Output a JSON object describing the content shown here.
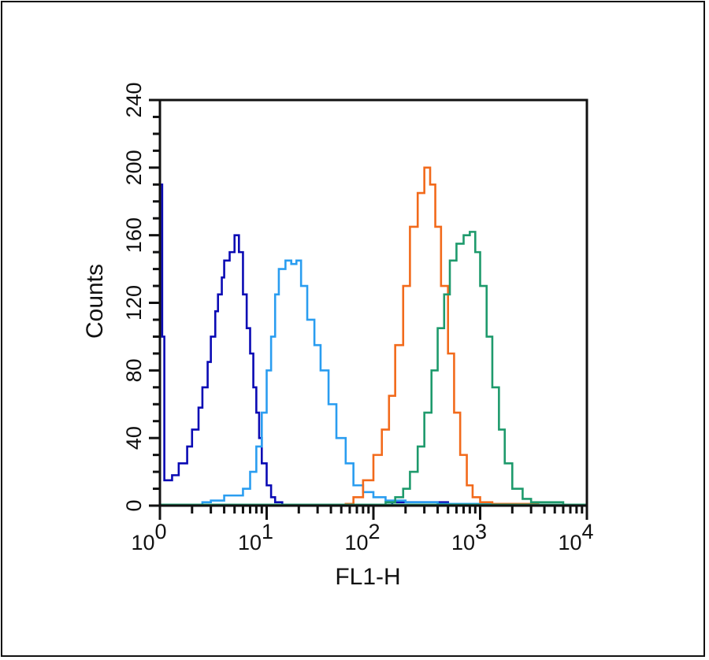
{
  "chart_data": {
    "type": "line",
    "style": "step-histogram",
    "title": "",
    "xlabel": "FL1-H",
    "ylabel": "Counts",
    "xscale": "log",
    "xlim": [
      1,
      10000
    ],
    "ylim": [
      0,
      240
    ],
    "x_tick_labels": [
      {
        "base": "10",
        "exp": "0"
      },
      {
        "base": "10",
        "exp": "1"
      },
      {
        "base": "10",
        "exp": "2"
      },
      {
        "base": "10",
        "exp": "3"
      },
      {
        "base": "10",
        "exp": "4"
      }
    ],
    "x_ticks": [
      1,
      10,
      100,
      1000,
      10000
    ],
    "y_ticks": [
      0,
      40,
      80,
      120,
      160,
      200,
      240
    ],
    "grid": false,
    "legend": "none",
    "series": [
      {
        "color": "#0a0ab4",
        "points": [
          [
            1,
            190
          ],
          [
            1.05,
            100
          ],
          [
            1.1,
            15
          ],
          [
            1.3,
            18
          ],
          [
            1.5,
            25
          ],
          [
            1.8,
            35
          ],
          [
            2,
            45
          ],
          [
            2.3,
            58
          ],
          [
            2.5,
            70
          ],
          [
            2.8,
            85
          ],
          [
            3,
            100
          ],
          [
            3.3,
            115
          ],
          [
            3.5,
            125
          ],
          [
            3.8,
            135
          ],
          [
            4,
            145
          ],
          [
            4.5,
            150
          ],
          [
            5,
            160
          ],
          [
            5.5,
            150
          ],
          [
            6,
            125
          ],
          [
            6.5,
            105
          ],
          [
            7,
            90
          ],
          [
            7.5,
            70
          ],
          [
            8,
            55
          ],
          [
            8.5,
            40
          ],
          [
            9,
            25
          ],
          [
            10,
            12
          ],
          [
            11,
            5
          ],
          [
            12,
            2
          ],
          [
            14,
            0
          ],
          [
            150,
            2
          ],
          [
            200,
            2
          ],
          [
            300,
            2
          ],
          [
            500,
            1
          ],
          [
            800,
            1
          ],
          [
            1000,
            0
          ]
        ]
      },
      {
        "color": "#2a9df0",
        "points": [
          [
            2.5,
            2
          ],
          [
            3,
            3
          ],
          [
            4,
            6
          ],
          [
            5,
            6
          ],
          [
            6,
            10
          ],
          [
            7,
            20
          ],
          [
            8,
            35
          ],
          [
            9,
            55
          ],
          [
            10,
            80
          ],
          [
            11,
            100
          ],
          [
            12,
            125
          ],
          [
            13,
            140
          ],
          [
            15,
            145
          ],
          [
            17,
            143
          ],
          [
            19,
            145
          ],
          [
            21,
            130
          ],
          [
            24,
            110
          ],
          [
            28,
            95
          ],
          [
            32,
            80
          ],
          [
            38,
            60
          ],
          [
            45,
            40
          ],
          [
            55,
            25
          ],
          [
            65,
            12
          ],
          [
            80,
            8
          ],
          [
            100,
            5
          ],
          [
            130,
            3
          ],
          [
            200,
            2
          ],
          [
            400,
            1
          ],
          [
            800,
            1
          ],
          [
            1300,
            0
          ]
        ]
      },
      {
        "color": "#f26a1b",
        "points": [
          [
            55,
            1
          ],
          [
            65,
            5
          ],
          [
            80,
            15
          ],
          [
            100,
            30
          ],
          [
            120,
            45
          ],
          [
            140,
            65
          ],
          [
            160,
            95
          ],
          [
            190,
            130
          ],
          [
            220,
            165
          ],
          [
            260,
            185
          ],
          [
            300,
            200
          ],
          [
            340,
            190
          ],
          [
            380,
            165
          ],
          [
            430,
            130
          ],
          [
            500,
            90
          ],
          [
            570,
            55
          ],
          [
            650,
            30
          ],
          [
            750,
            12
          ],
          [
            850,
            5
          ],
          [
            1000,
            2
          ],
          [
            1300,
            1
          ],
          [
            2500,
            1
          ],
          [
            3500,
            0
          ]
        ]
      },
      {
        "color": "#1e9a6c",
        "points": [
          [
            130,
            2
          ],
          [
            160,
            5
          ],
          [
            190,
            10
          ],
          [
            220,
            20
          ],
          [
            260,
            35
          ],
          [
            300,
            55
          ],
          [
            350,
            80
          ],
          [
            400,
            105
          ],
          [
            460,
            125
          ],
          [
            520,
            145
          ],
          [
            600,
            155
          ],
          [
            700,
            160
          ],
          [
            800,
            162
          ],
          [
            900,
            150
          ],
          [
            1000,
            130
          ],
          [
            1150,
            100
          ],
          [
            1300,
            70
          ],
          [
            1500,
            45
          ],
          [
            1700,
            25
          ],
          [
            2000,
            10
          ],
          [
            2500,
            4
          ],
          [
            3000,
            2
          ],
          [
            4000,
            2
          ],
          [
            5000,
            2
          ],
          [
            6000,
            0
          ]
        ]
      }
    ]
  }
}
